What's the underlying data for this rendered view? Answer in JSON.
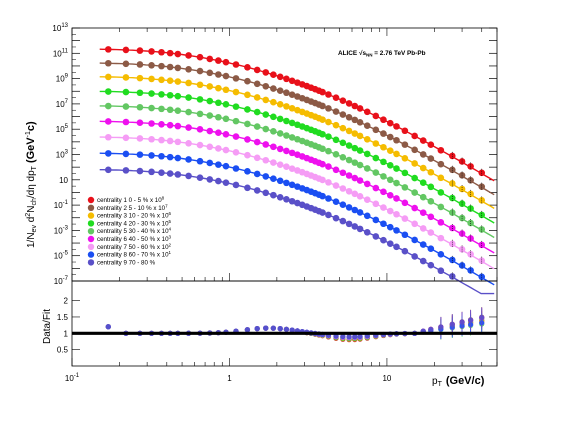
{
  "chart_data": [
    {
      "type": "scatter",
      "xscale": "log",
      "yscale": "log",
      "xlim": [
        0.1,
        50
      ],
      "ylim": [
        1e-07,
        10000000000000.0
      ],
      "ylabel_main": "1/N",
      "ylabel_sub1": "ev",
      "ylabel_mid": " d",
      "ylabel_sup": "2",
      "ylabel_rest": "N",
      "ylabel_sub2": "ch",
      "ylabel_tail": "/dη dp",
      "ylabel_sub3": "T",
      "ylabel_unit": "(GeV",
      "ylabel_unit_sup": "-1",
      "ylabel_unit_end": "c)",
      "yticks": [
        {
          "value": 10000000000000.0,
          "label": "10",
          "exp": "13"
        },
        {
          "value": 100000000000.0,
          "label": "10",
          "exp": "11"
        },
        {
          "value": 1000000000.0,
          "label": "10",
          "exp": "9"
        },
        {
          "value": 10000000.0,
          "label": "10",
          "exp": "7"
        },
        {
          "value": 100000.0,
          "label": "10",
          "exp": "5"
        },
        {
          "value": 1000.0,
          "label": "10",
          "exp": "3"
        },
        {
          "value": 10,
          "label": "10",
          "exp": ""
        },
        {
          "value": 0.1,
          "label": "10",
          "exp": "-1"
        },
        {
          "value": 0.001,
          "label": "10",
          "exp": "-3"
        },
        {
          "value": 1e-05,
          "label": "10",
          "exp": "-5"
        },
        {
          "value": 1e-07,
          "label": "10",
          "exp": "-7"
        }
      ],
      "annotation": "ALICE √s",
      "annotation_sub": "NN",
      "annotation_rest": " = 2.76 TeV Pb-Pb",
      "x": [
        0.17,
        0.22,
        0.27,
        0.32,
        0.37,
        0.42,
        0.47,
        0.55,
        0.65,
        0.75,
        0.85,
        0.95,
        1.1,
        1.3,
        1.5,
        1.7,
        1.9,
        2.1,
        2.3,
        2.5,
        2.7,
        2.9,
        3.1,
        3.3,
        3.5,
        3.7,
        3.9,
        4.25,
        4.75,
        5.25,
        5.75,
        6.25,
        6.75,
        7.5,
        8.5,
        9.5,
        10.5,
        11.5,
        13,
        15,
        17,
        19,
        22,
        26,
        30,
        34,
        40
      ],
      "series": [
        {
          "name": "centrality 1   0 - 5 %  x 10",
          "scale_exp": "8",
          "color": "#e8101a",
          "amp": 150000000000.0
        },
        {
          "name": "centrality 2   5 - 10 %  x 10",
          "scale_exp": "7",
          "color": "#8c5a46",
          "amp": 12000000000.0
        },
        {
          "name": "centrality 3   10 - 20 %  x 10",
          "scale_exp": "6",
          "color": "#f5bc00",
          "amp": 1000000000.0
        },
        {
          "name": "centrality 4   20 - 30 %  x 10",
          "scale_exp": "5",
          "color": "#20dc20",
          "amp": 70000000.0
        },
        {
          "name": "centrality 5   30 - 40 %  x 10",
          "scale_exp": "4",
          "color": "#63c763",
          "amp": 5000000.0
        },
        {
          "name": "centrality 6   40 - 50 %  x 10",
          "scale_exp": "3",
          "color": "#ee10ee",
          "amp": 300000.0
        },
        {
          "name": "centrality 7   50 - 60 %  x 10",
          "scale_exp": "2",
          "color": "#f59cf5",
          "amp": 17000.0
        },
        {
          "name": "centrality 8   60 - 70 %  x 10",
          "scale_exp": "1",
          "color": "#1a4ef2",
          "amp": 900.0
        },
        {
          "name": "centrality 9   70 - 80 %",
          "scale_exp": "",
          "color": "#5a50c8",
          "amp": 45.0
        }
      ]
    },
    {
      "type": "scatter",
      "xscale": "log",
      "xlim": [
        0.1,
        50
      ],
      "ylim": [
        0.0,
        2.6
      ],
      "ylabel": "Data/Fit",
      "xlabel": "p",
      "xlabel_sub": "T",
      "xlabel_unit": "(GeV/c)",
      "yticks": [
        0.5,
        1,
        1.5,
        2
      ],
      "xticks": [
        {
          "value": 0.1,
          "label": "10",
          "exp": "-1"
        },
        {
          "value": 1,
          "label": "1",
          "exp": ""
        },
        {
          "value": 10,
          "label": "10",
          "exp": ""
        }
      ],
      "reference_line": 1.0
    }
  ]
}
